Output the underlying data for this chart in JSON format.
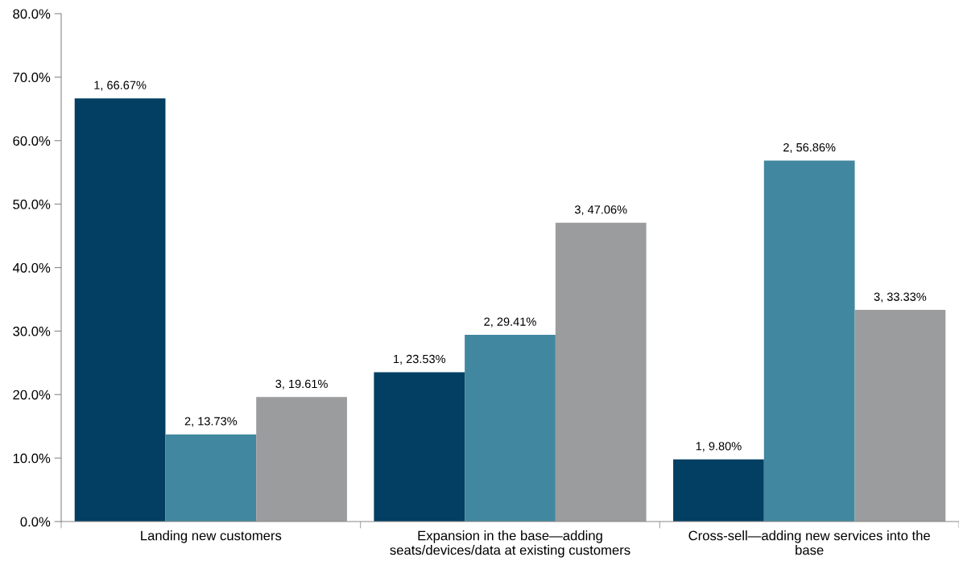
{
  "chart_data": {
    "type": "bar",
    "categories": [
      "Landing new customers",
      "Expansion in the base—adding seats/devices/data at existing customers",
      "Cross-sell—adding new services into the base"
    ],
    "series": [
      {
        "color": "#023f62",
        "values": [
          66.67,
          23.53,
          9.8
        ],
        "value_labels": [
          "1, 66.67%",
          "1, 23.53%",
          "1, 9.80%"
        ]
      },
      {
        "color": "#41879f",
        "values": [
          13.73,
          29.41,
          56.86
        ],
        "value_labels": [
          "2, 13.73%",
          "2, 29.41%",
          "2, 56.86%"
        ]
      },
      {
        "color": "#9b9c9e",
        "values": [
          19.61,
          47.06,
          33.33
        ],
        "value_labels": [
          "3, 19.61%",
          "3, 47.06%",
          "3, 33.33%"
        ]
      }
    ],
    "ylim": [
      0,
      80
    ],
    "yticks": [
      {
        "value": 0,
        "label": "0.0%"
      },
      {
        "value": 10,
        "label": "10.0%"
      },
      {
        "value": 20,
        "label": "20.0%"
      },
      {
        "value": 30,
        "label": "30.0%"
      },
      {
        "value": 40,
        "label": "40.0%"
      },
      {
        "value": 50,
        "label": "50.0%"
      },
      {
        "value": 60,
        "label": "60.0%"
      },
      {
        "value": 70,
        "label": "70.0%"
      },
      {
        "value": 80,
        "label": "80.0%"
      }
    ],
    "grid": false,
    "legend": false
  }
}
